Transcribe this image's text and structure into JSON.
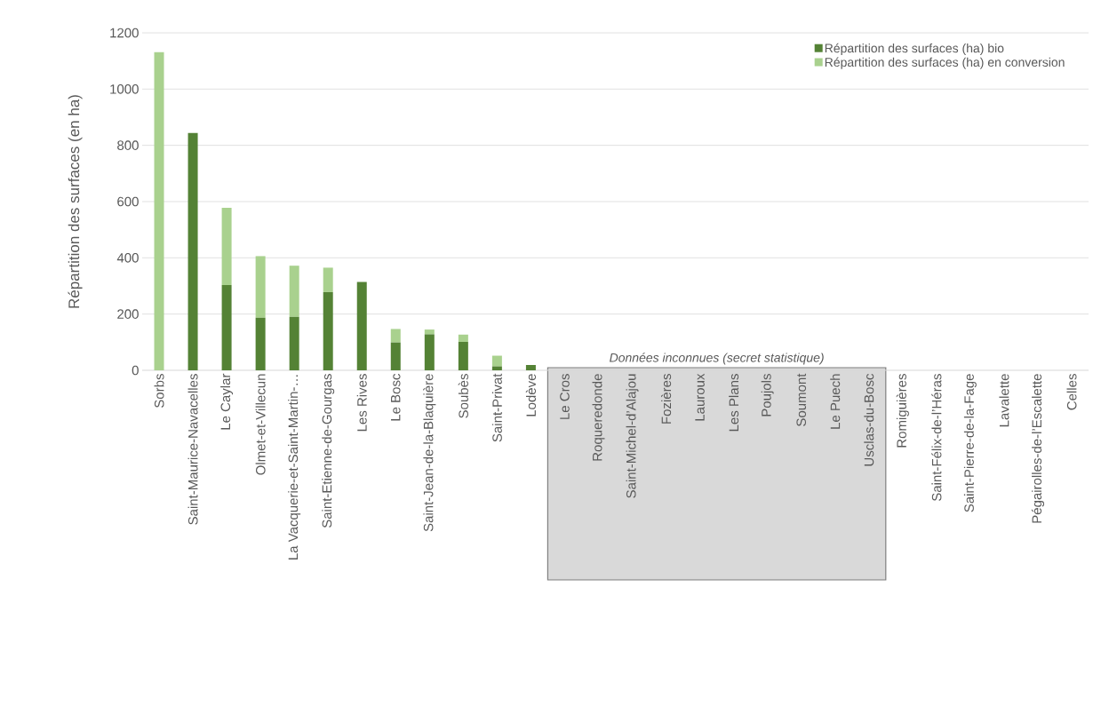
{
  "chart_data": {
    "type": "bar",
    "stacked": true,
    "ylabel": "Répartition des surfaces (en ha)",
    "categories": [
      "Sorbs",
      "Saint-Maurice-Navacelles",
      "Le Caylar",
      "Olmet-et-Villecun",
      "La Vacquerie-et-Saint-Martin-…",
      "Saint-Etienne-de-Gourgas",
      "Les Rives",
      "Le Bosc",
      "Saint-Jean-de-la-Blaquière",
      "Soubès",
      "Saint-Privat",
      "Lodève",
      "Le Cros",
      "Roqueredonde",
      "Saint-Michel-d’Alajou",
      "Fozières",
      "Lauroux",
      "Les Plans",
      "Poujols",
      "Soumont",
      "Le Puech",
      "Usclas-du-Bosc",
      "Romiguières",
      "Saint-Félix-de-l’Héras",
      "Saint-Pierre-de-la-Fage",
      "Lavalette",
      "Pégairolles-de-l’Escalette",
      "Celles"
    ],
    "series": [
      {
        "name": "Répartition des surfaces (ha) bio",
        "color": "#548235",
        "values": [
          0,
          844,
          303,
          187,
          190,
          278,
          314,
          99,
          128,
          101,
          14,
          19,
          null,
          null,
          null,
          null,
          null,
          null,
          null,
          null,
          null,
          null,
          0,
          0,
          0,
          0,
          0,
          0
        ]
      },
      {
        "name": "Répartition des surfaces (ha) en conversion",
        "color": "#a9d18e",
        "values": [
          1131,
          0,
          275,
          219,
          182,
          87,
          0,
          48,
          17,
          26,
          38,
          0,
          null,
          null,
          null,
          null,
          null,
          null,
          null,
          null,
          null,
          null,
          0,
          0,
          0,
          0,
          0,
          0
        ]
      }
    ],
    "ylim": [
      0,
      1200
    ],
    "yticks": [
      0,
      200,
      400,
      600,
      800,
      1000,
      1200
    ],
    "grid": "y",
    "legend": "top right",
    "annotations": [
      "Données inconnues (secret statistique)"
    ]
  }
}
